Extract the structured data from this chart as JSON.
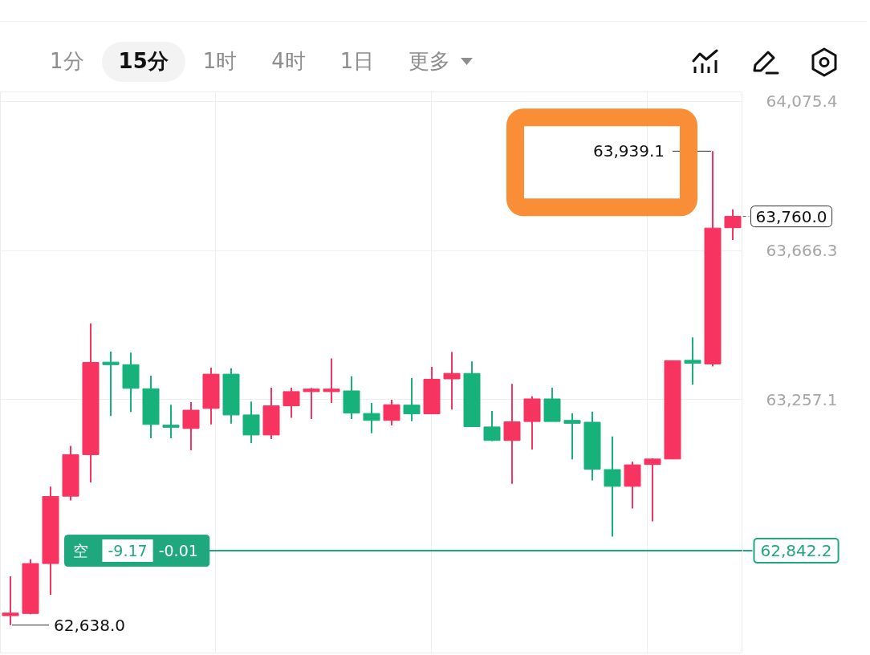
{
  "chart_data": {
    "type": "candlestick",
    "categories": [
      null,
      null,
      null,
      null,
      null,
      null,
      null,
      null,
      null,
      null,
      null,
      null,
      null,
      null,
      null,
      null,
      null,
      null,
      null,
      null,
      null,
      null,
      null,
      null,
      null,
      null,
      null,
      null,
      null,
      null,
      null,
      null,
      null,
      null,
      null,
      null,
      null
    ],
    "ohlc": [
      [
        62664,
        62772,
        62638.0,
        62671
      ],
      [
        62670,
        62819,
        62668,
        62807
      ],
      [
        62807,
        63018,
        62721,
        62991
      ],
      [
        62992,
        63130,
        62980,
        63106
      ],
      [
        63106,
        63466,
        63030,
        63359
      ],
      [
        63360,
        63389,
        63212,
        63353
      ],
      [
        63353,
        63386,
        63223,
        63288
      ],
      [
        63287,
        63323,
        63151,
        63189
      ],
      [
        63187,
        63243,
        63151,
        63181
      ],
      [
        63178,
        63250,
        63118,
        63228
      ],
      [
        63233,
        63345,
        63189,
        63327
      ],
      [
        63327,
        63343,
        63191,
        63215
      ],
      [
        63215,
        63252,
        63138,
        63160
      ],
      [
        63160,
        63290,
        63149,
        63240
      ],
      [
        63240,
        63290,
        63207,
        63279
      ],
      [
        63279,
        63289,
        63204,
        63286
      ],
      [
        63279,
        63370,
        63248,
        63286
      ],
      [
        63281,
        63321,
        63204,
        63220
      ],
      [
        63219,
        63248,
        63165,
        63200
      ],
      [
        63200,
        63257,
        63186,
        63243
      ],
      [
        63242,
        63316,
        63198,
        63218
      ],
      [
        63218,
        63347,
        63218,
        63313
      ],
      [
        63314,
        63388,
        63230,
        63329
      ],
      [
        63329,
        63362,
        63183,
        63183
      ],
      [
        63182,
        63226,
        63143,
        63145
      ],
      [
        63145,
        63300,
        63026,
        63196
      ],
      [
        63197,
        63266,
        63120,
        63259
      ],
      [
        63259,
        63290,
        63197,
        63197
      ],
      [
        63200,
        63219,
        63093,
        63192
      ],
      [
        63195,
        63224,
        63035,
        63066
      ],
      [
        63065,
        63156,
        62881,
        63019
      ],
      [
        63019,
        63087,
        62958,
        63078
      ],
      [
        63079,
        63096,
        62923,
        63094
      ],
      [
        63094,
        63364,
        63094,
        63364
      ],
      [
        63365,
        63428,
        63298,
        63357
      ],
      [
        63355,
        63939.1,
        63348,
        63728
      ],
      [
        63729,
        63779,
        63695,
        63760.0
      ]
    ],
    "colors": [
      "#f7335f",
      "#f7335f",
      "#f7335f",
      "#f7335f",
      "#f7335f",
      "#17b27c",
      "#17b27c",
      "#17b27c",
      "#17b27c",
      "#f7335f",
      "#f7335f",
      "#17b27c",
      "#17b27c",
      "#f7335f",
      "#f7335f",
      "#f7335f",
      "#f7335f",
      "#17b27c",
      "#17b27c",
      "#f7335f",
      "#17b27c",
      "#f7335f",
      "#f7335f",
      "#17b27c",
      "#17b27c",
      "#f7335f",
      "#f7335f",
      "#17b27c",
      "#17b27c",
      "#17b27c",
      "#17b27c",
      "#f7335f",
      "#f7335f",
      "#f7335f",
      "#17b27c",
      "#f7335f",
      "#f7335f"
    ],
    "ylim": [
      62559.3,
      64101.8
    ],
    "yticks": [
      {
        "value": 64075.4,
        "label": "64,075.4"
      },
      {
        "value": 63666.3,
        "label": "63,666.3"
      },
      {
        "value": 63257.1,
        "label": "63,257.1"
      }
    ],
    "tick_labels": "y",
    "grid": true,
    "ref_lines": [
      {
        "axis": "y",
        "value": 62842.2,
        "label": "62,842.2",
        "color": "#1fa87d"
      }
    ],
    "annotations": [
      "1分",
      "15分",
      "1时",
      "4时",
      "1日",
      "更多",
      "63,939.1",
      "63,760.0",
      "62,638.0",
      "空",
      "-9.17",
      "-0.01"
    ]
  }
}
